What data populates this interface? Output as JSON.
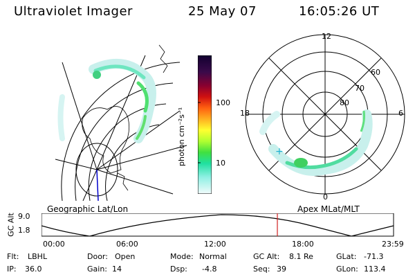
{
  "header": {
    "instrument": "Ultraviolet Imager",
    "date": "25 May 07",
    "time": "16:05:26 UT"
  },
  "left_map": {
    "caption": "Geographic Lat/Lon"
  },
  "right_map": {
    "caption": "Apex MLat/MLT",
    "mlt_labels": [
      "12",
      "18",
      "6",
      "0"
    ],
    "lat_labels": [
      "60",
      "70",
      "80"
    ]
  },
  "colorbar": {
    "unit_label": "photon cm⁻²s⁻¹",
    "ticks": [
      "100",
      "10"
    ],
    "scale": "log",
    "colors": [
      "#1a0a3a",
      "#5a0a5a",
      "#a00020",
      "#e02010",
      "#ff7010",
      "#ffc020",
      "#ffff30",
      "#b0ff30",
      "#40e040",
      "#20e0a0",
      "#80f0e0",
      "#d0f8f4",
      "#f4fcfc"
    ]
  },
  "timeline": {
    "axis_label": "GC Alt",
    "y_ticks": [
      "9.0",
      "1.8"
    ],
    "x_ticks": [
      "00:00",
      "06:00",
      "12:00",
      "18:00",
      "23:59"
    ],
    "current_marker_time": "16:05"
  },
  "status": {
    "filter_label": "Flt:",
    "filter_value": "LBHL",
    "door_label": "Door:",
    "door_value": "Open",
    "mode_label": "Mode:",
    "mode_value": "Normal",
    "gcalt_label": "GC Alt:",
    "gcalt_value": "8.1 Re",
    "glat_label": "GLat:",
    "glat_value": "-71.3",
    "ip_label": "IP:",
    "ip_value": "36.0",
    "gain_label": "Gain:",
    "gain_value": "14",
    "dsp_label": "Dsp:",
    "dsp_value": "-4.8",
    "seq_label": "Seq:",
    "seq_value": "39",
    "glon_label": "GLon:",
    "glon_value": "113.4"
  }
}
